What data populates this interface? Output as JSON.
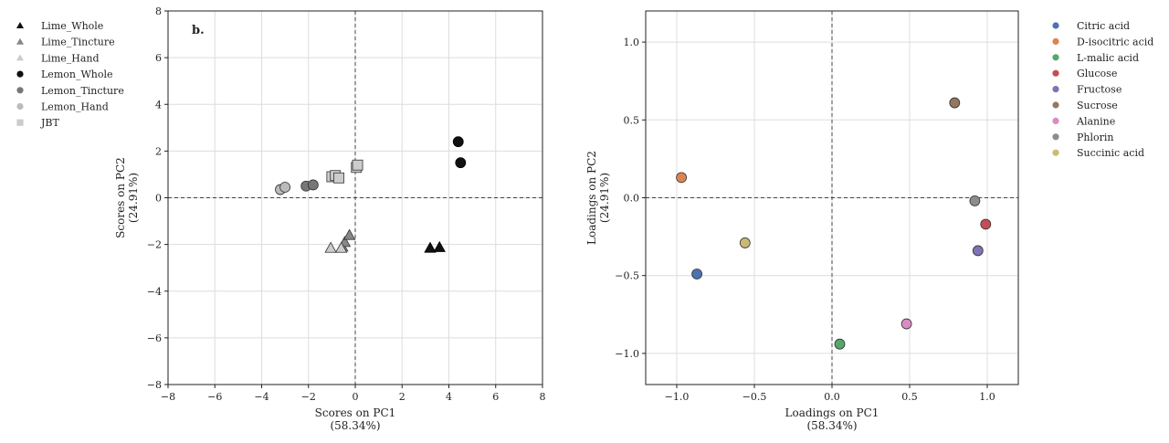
{
  "chart_data": [
    {
      "type": "scatter",
      "panel_label": "b.",
      "xlabel": "Scores on PC1",
      "xlabel_pct": "(58.34%)",
      "ylabel": "Scores on PC2",
      "ylabel_pct": "(24.91%)",
      "xlim": [
        -8,
        8
      ],
      "ylim": [
        -8,
        8
      ],
      "xticks": [
        -8,
        -6,
        -4,
        -2,
        0,
        2,
        4,
        6,
        8
      ],
      "yticks": [
        -8,
        -6,
        -4,
        -2,
        0,
        2,
        4,
        6,
        8
      ],
      "grid": true,
      "legend_position": "outside-left",
      "series": [
        {
          "name": "Lime_Whole",
          "marker": "triangle",
          "color": "#111111",
          "points": [
            [
              3.2,
              -2.15
            ],
            [
              3.6,
              -2.12
            ]
          ]
        },
        {
          "name": "Lime_Tincture",
          "marker": "triangle",
          "color": "#888888",
          "points": [
            [
              -0.55,
              -2.1
            ],
            [
              -0.45,
              -1.9
            ],
            [
              -0.25,
              -1.6
            ]
          ]
        },
        {
          "name": "Lime_Hand",
          "marker": "triangle",
          "color": "#cccccc",
          "points": [
            [
              -1.05,
              -2.15
            ],
            [
              -0.6,
              -2.15
            ]
          ]
        },
        {
          "name": "Lemon_Whole",
          "marker": "circle",
          "color": "#111111",
          "points": [
            [
              4.4,
              2.4
            ],
            [
              4.5,
              1.5
            ]
          ]
        },
        {
          "name": "Lemon_Tincture",
          "marker": "circle",
          "color": "#777777",
          "points": [
            [
              -2.1,
              0.5
            ],
            [
              -1.8,
              0.55
            ]
          ]
        },
        {
          "name": "Lemon_Hand",
          "marker": "circle",
          "color": "#bbbbbb",
          "points": [
            [
              -3.2,
              0.35
            ],
            [
              -3.0,
              0.45
            ]
          ]
        },
        {
          "name": "JBT",
          "marker": "square",
          "color": "#cccccc",
          "points": [
            [
              -1.0,
              0.9
            ],
            [
              -0.85,
              0.95
            ],
            [
              -0.7,
              0.85
            ],
            [
              0.05,
              1.3
            ],
            [
              0.1,
              1.4
            ]
          ]
        }
      ]
    },
    {
      "type": "scatter",
      "xlabel": "Loadings on PC1",
      "xlabel_pct": "(58.34%)",
      "ylabel": "Loadings on PC2",
      "ylabel_pct": "(24.91%)",
      "xlim": [
        -1.2,
        1.2
      ],
      "ylim": [
        -1.2,
        1.2
      ],
      "xticks": [
        "-1.0",
        "-0.5",
        "0.0",
        "0.5",
        "1.0"
      ],
      "yticks": [
        "-1.0",
        "-0.5",
        "0.0",
        "0.5",
        "1.0"
      ],
      "grid": true,
      "legend_position": "outside-right",
      "series": [
        {
          "name": "Citric acid",
          "marker": "circle",
          "color": "#4c72b0",
          "points": [
            [
              -0.87,
              -0.49
            ]
          ]
        },
        {
          "name": "D-isocitric acid",
          "marker": "circle",
          "color": "#dd8452",
          "points": [
            [
              -0.97,
              0.13
            ]
          ]
        },
        {
          "name": "L-malic acid",
          "marker": "circle",
          "color": "#55a868",
          "points": [
            [
              0.05,
              -0.94
            ]
          ]
        },
        {
          "name": "Glucose",
          "marker": "circle",
          "color": "#c44e52",
          "points": [
            [
              0.99,
              -0.17
            ]
          ]
        },
        {
          "name": "Fructose",
          "marker": "circle",
          "color": "#8172b3",
          "points": [
            [
              0.94,
              -0.34
            ]
          ]
        },
        {
          "name": "Sucrose",
          "marker": "circle",
          "color": "#937860",
          "points": [
            [
              0.79,
              0.61
            ]
          ]
        },
        {
          "name": "Alanine",
          "marker": "circle",
          "color": "#da8bc3",
          "points": [
            [
              0.48,
              -0.81
            ]
          ]
        },
        {
          "name": "Phlorin",
          "marker": "circle",
          "color": "#8c8c8c",
          "points": [
            [
              0.92,
              -0.02
            ]
          ]
        },
        {
          "name": "Succinic acid",
          "marker": "circle",
          "color": "#ccb974",
          "points": [
            [
              -0.56,
              -0.29
            ]
          ]
        }
      ]
    }
  ]
}
